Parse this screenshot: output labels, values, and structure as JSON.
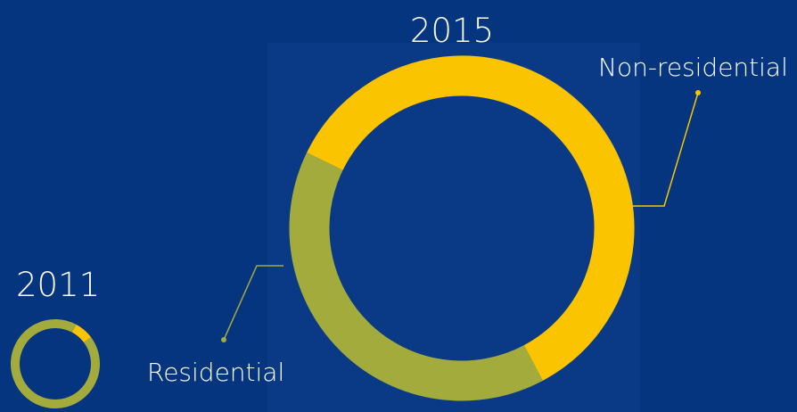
{
  "colors": {
    "background": "#063580",
    "residential": "#a3ab3d",
    "non_residential": "#fbc400",
    "panel": "#0a3a86",
    "text": "#ffffff"
  },
  "chart_data": [
    {
      "type": "pie",
      "variant": "donut",
      "title": "2011",
      "series": [
        {
          "name": "Residential",
          "value": 93,
          "color": "#a3ab3d"
        },
        {
          "name": "Non-residential",
          "value": 7,
          "color": "#fbc400"
        }
      ]
    },
    {
      "type": "pie",
      "variant": "donut",
      "title": "2015",
      "series": [
        {
          "name": "Residential",
          "value": 40,
          "color": "#a3ab3d"
        },
        {
          "name": "Non-residential",
          "value": 60,
          "color": "#fbc400"
        }
      ]
    }
  ]
}
